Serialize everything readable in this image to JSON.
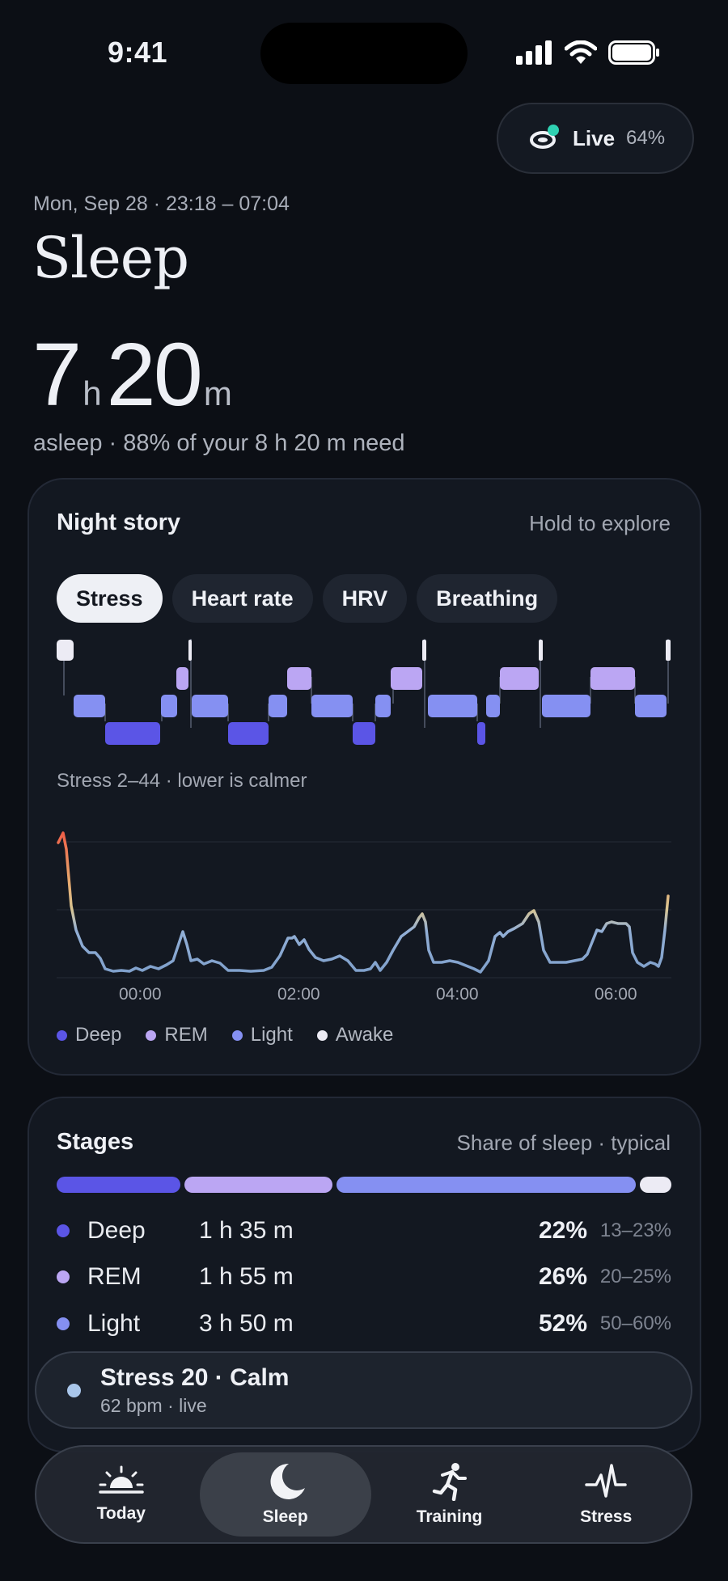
{
  "status_bar": {
    "time": "9:41"
  },
  "live_pill": {
    "label": "Live",
    "battery": "64%"
  },
  "header": {
    "date_range": "Mon, Sep 28 · 23:18 – 07:04",
    "title": "Sleep",
    "hours": "7",
    "hours_unit": "h",
    "minutes": "20",
    "minutes_unit": "m",
    "summary": "asleep · 88% of your 8 h 20 m need"
  },
  "night_story": {
    "title": "Night story",
    "hint": "Hold to explore",
    "chips": [
      {
        "label": "Stress",
        "active": true
      },
      {
        "label": "Heart rate",
        "active": false
      },
      {
        "label": "HRV",
        "active": false
      },
      {
        "label": "Breathing",
        "active": false
      }
    ],
    "metric_caption": "Stress 2–44 · lower is calmer",
    "x_ticks": [
      "00:00",
      "02:00",
      "04:00",
      "06:00"
    ],
    "legend": [
      {
        "label": "Deep",
        "color": "#5b55e6"
      },
      {
        "label": "REM",
        "color": "#bba6f3"
      },
      {
        "label": "Light",
        "color": "#8590f2"
      },
      {
        "label": "Awake",
        "color": "#ecebf4"
      }
    ]
  },
  "stages": {
    "title": "Stages",
    "hint": "Share of sleep · typical",
    "rows": [
      {
        "name": "Deep",
        "duration": "1 h 35 m",
        "percent": "22%",
        "typical": "13–23%",
        "color": "#5b55e6"
      },
      {
        "name": "REM",
        "duration": "1 h 55 m",
        "percent": "26%",
        "typical": "20–25%",
        "color": "#bba6f3"
      },
      {
        "name": "Light",
        "duration": "3 h 50 m",
        "percent": "52%",
        "typical": "50–60%",
        "color": "#8590f2"
      }
    ]
  },
  "toast": {
    "title": "Stress 20 · Calm",
    "subtitle": "62 bpm · live"
  },
  "tabs": [
    {
      "label": "Today",
      "icon": "sunrise-icon",
      "active": false
    },
    {
      "label": "Sleep",
      "icon": "moon-icon",
      "active": true
    },
    {
      "label": "Training",
      "icon": "runner-icon",
      "active": false
    },
    {
      "label": "Stress",
      "icon": "pulse-icon",
      "active": false
    }
  ],
  "colors": {
    "deep": "#5b55e6",
    "rem": "#bba6f3",
    "light": "#8590f2",
    "awake": "#ecebf4"
  }
}
